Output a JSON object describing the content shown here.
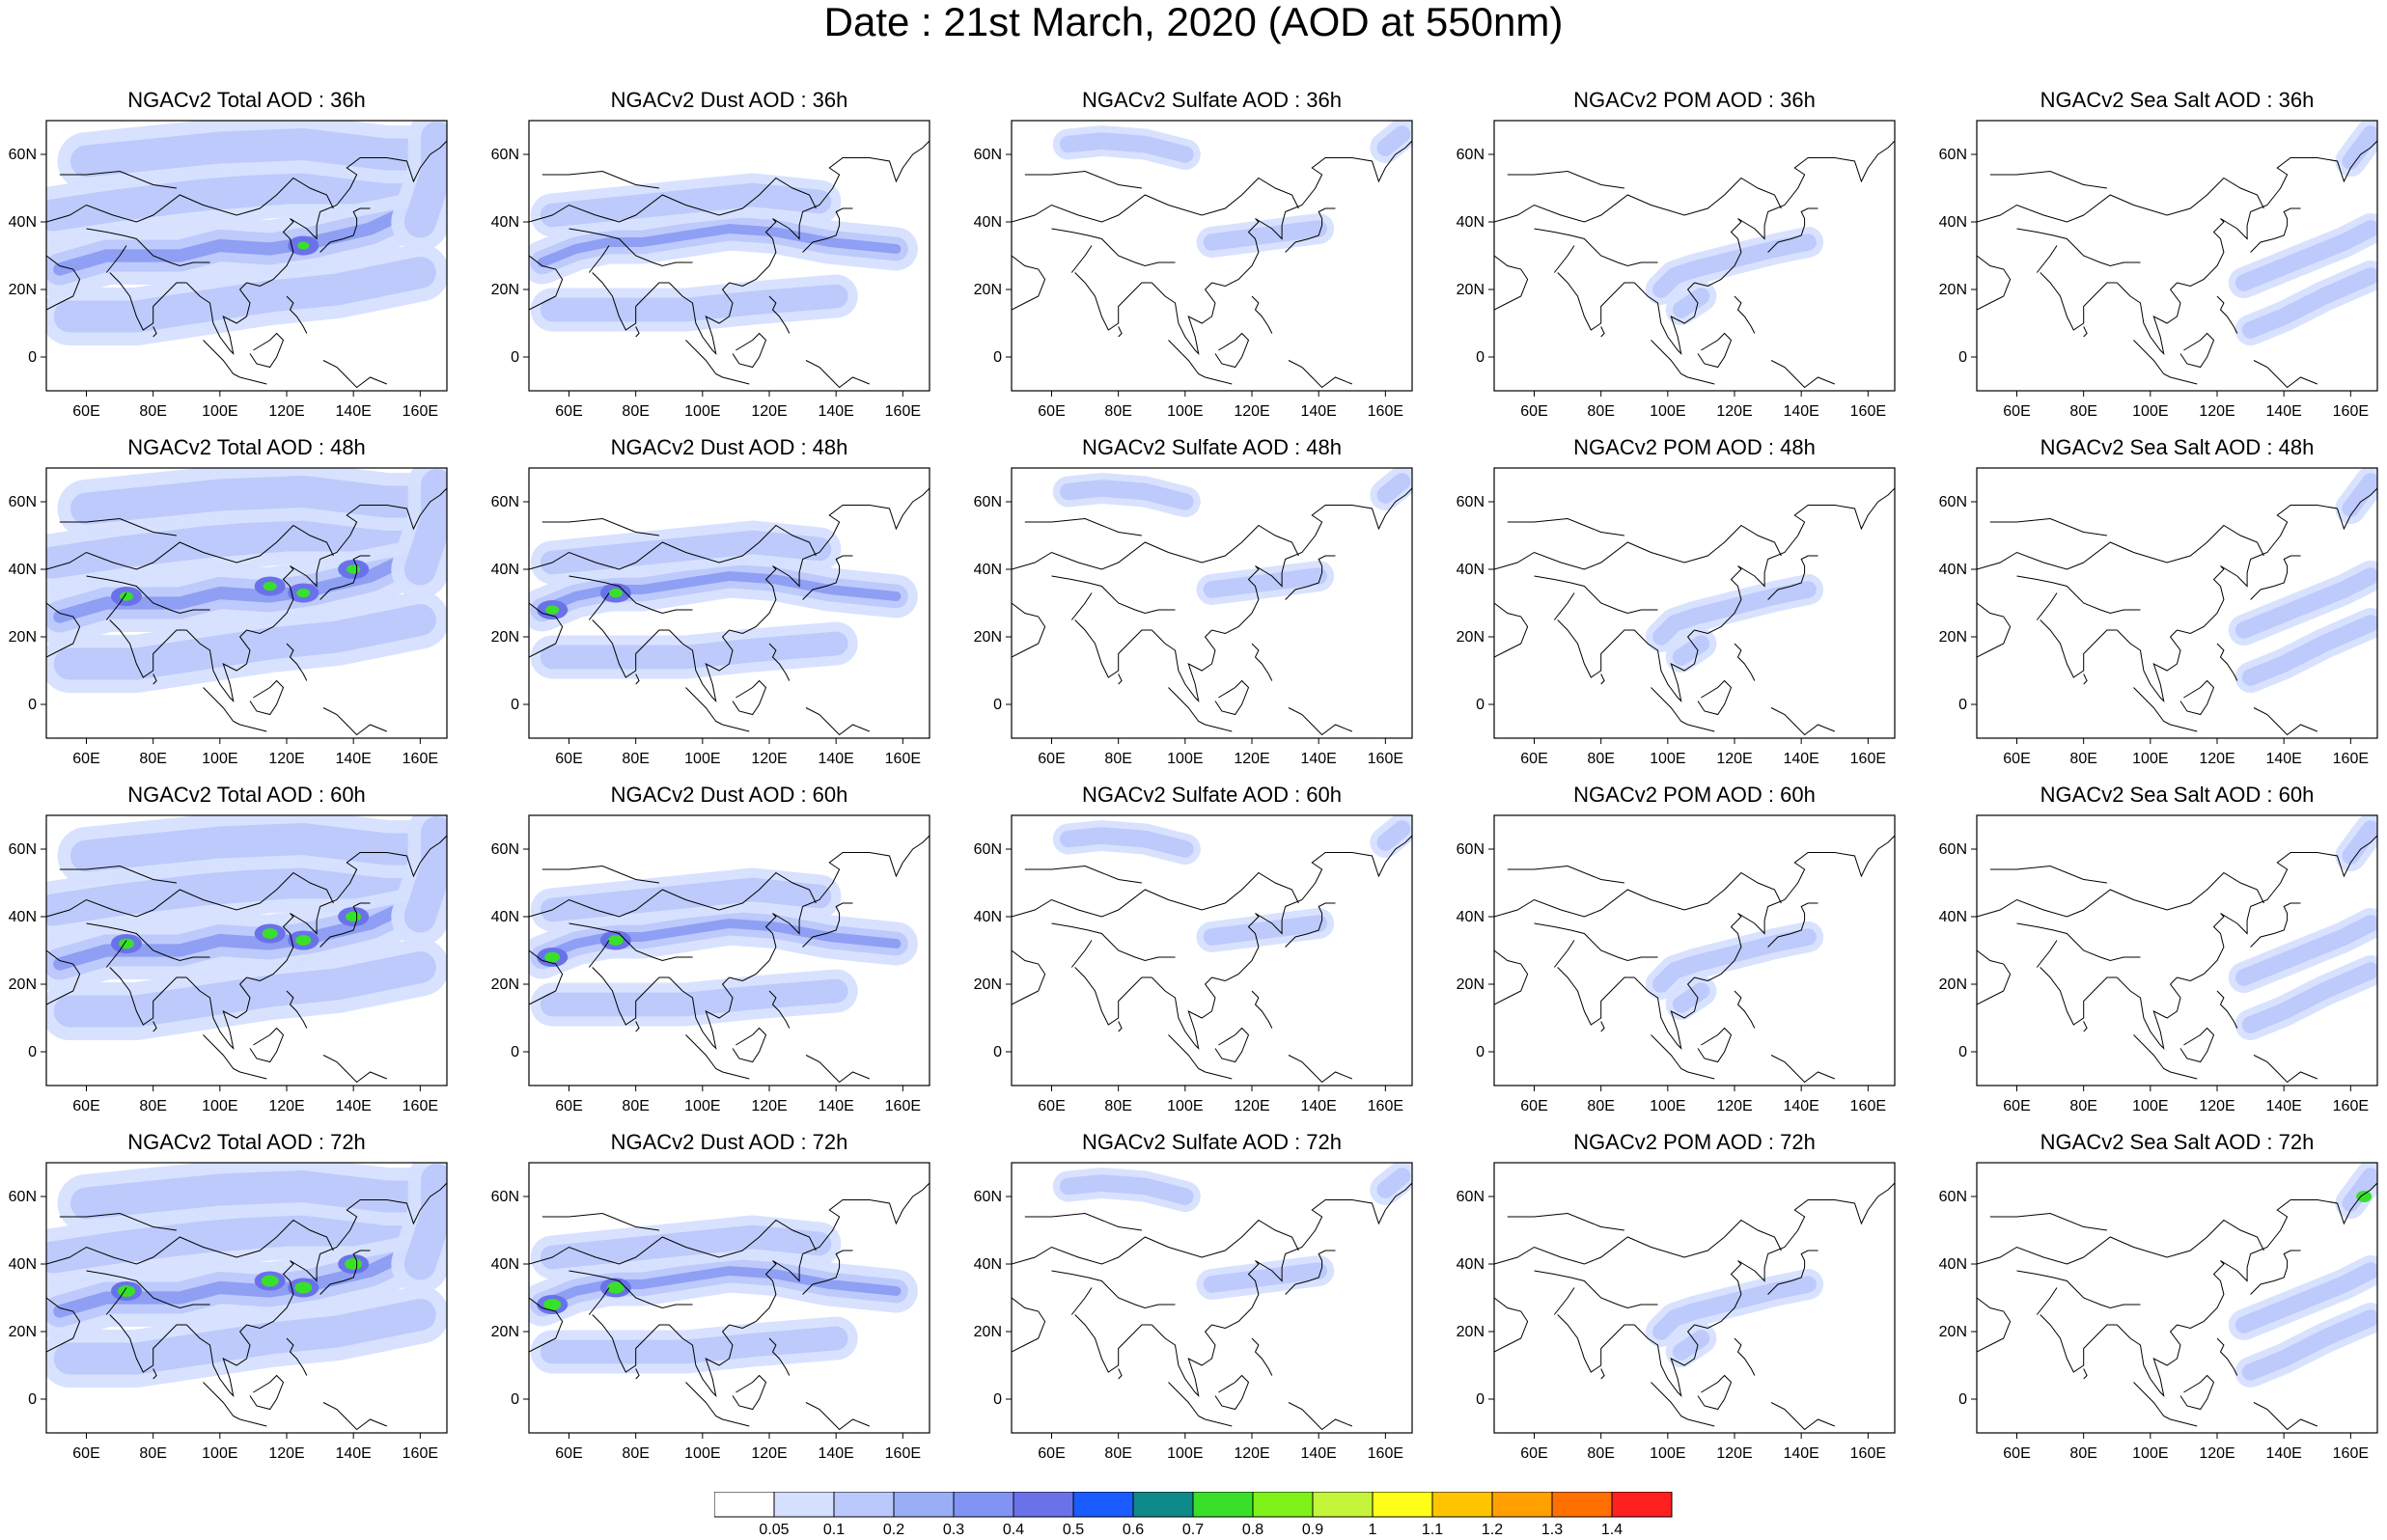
{
  "title": "Date : 21st March, 2020 (AOD at 550nm)",
  "panels": [
    {
      "title": "NGACv2 Total AOD : 36h",
      "species": "total",
      "hour": 36
    },
    {
      "title": "NGACv2 Dust AOD : 36h",
      "species": "dust",
      "hour": 36
    },
    {
      "title": "NGACv2 Sulfate AOD : 36h",
      "species": "sulfate",
      "hour": 36
    },
    {
      "title": "NGACv2 POM AOD : 36h",
      "species": "pom",
      "hour": 36
    },
    {
      "title": "NGACv2 Sea Salt AOD : 36h",
      "species": "seasalt",
      "hour": 36
    },
    {
      "title": "NGACv2 Total AOD : 48h",
      "species": "total",
      "hour": 48
    },
    {
      "title": "NGACv2 Dust AOD : 48h",
      "species": "dust",
      "hour": 48
    },
    {
      "title": "NGACv2 Sulfate AOD : 48h",
      "species": "sulfate",
      "hour": 48
    },
    {
      "title": "NGACv2 POM AOD : 48h",
      "species": "pom",
      "hour": 48
    },
    {
      "title": "NGACv2 Sea Salt AOD : 48h",
      "species": "seasalt",
      "hour": 48
    },
    {
      "title": "NGACv2 Total AOD : 60h",
      "species": "total",
      "hour": 60
    },
    {
      "title": "NGACv2 Dust AOD : 60h",
      "species": "dust",
      "hour": 60
    },
    {
      "title": "NGACv2 Sulfate AOD : 60h",
      "species": "sulfate",
      "hour": 60
    },
    {
      "title": "NGACv2 POM AOD : 60h",
      "species": "pom",
      "hour": 60
    },
    {
      "title": "NGACv2 Sea Salt AOD : 60h",
      "species": "seasalt",
      "hour": 60
    },
    {
      "title": "NGACv2 Total AOD : 72h",
      "species": "total",
      "hour": 72
    },
    {
      "title": "NGACv2 Dust AOD : 72h",
      "species": "dust",
      "hour": 72
    },
    {
      "title": "NGACv2 Sulfate AOD : 72h",
      "species": "sulfate",
      "hour": 72
    },
    {
      "title": "NGACv2 POM AOD : 72h",
      "species": "pom",
      "hour": 72
    },
    {
      "title": "NGACv2 Sea Salt  AOD : 72h",
      "species": "seasalt",
      "hour": 72
    }
  ],
  "map_axes": {
    "lon_ticks": [
      "60E",
      "80E",
      "100E",
      "120E",
      "140E",
      "160E"
    ],
    "lon_values": [
      60,
      80,
      100,
      120,
      140,
      160
    ],
    "lat_ticks": [
      "60N",
      "40N",
      "20N",
      "0"
    ],
    "lat_values": [
      60,
      40,
      20,
      0
    ],
    "lon_range": [
      48,
      168
    ],
    "lat_range": [
      -10,
      70
    ]
  },
  "colorbar": {
    "labels": [
      "0.05",
      "0.1",
      "0.2",
      "0.3",
      "0.4",
      "0.5",
      "0.6",
      "0.7",
      "0.8",
      "0.9",
      "1",
      "1.1",
      "1.2",
      "1.3",
      "1.4"
    ],
    "colors": [
      "#ffffff",
      "#d6e0ff",
      "#bac8fb",
      "#9aaef6",
      "#8294f3",
      "#6a72ea",
      "#1a5cff",
      "#0f8a8a",
      "#38e02a",
      "#7ff21a",
      "#c4f53a",
      "#ffff1a",
      "#ffc400",
      "#ffa000",
      "#ff7000",
      "#ff2020"
    ]
  },
  "plumes": {
    "total": [
      [
        [
          52,
          26
        ],
        [
          66,
          30
        ],
        [
          78,
          30
        ],
        [
          88,
          30
        ],
        [
          100,
          33
        ],
        [
          115,
          32
        ],
        [
          128,
          34
        ],
        [
          145,
          38
        ],
        [
          160,
          45
        ]
      ],
      [
        [
          50,
          42
        ],
        [
          70,
          45
        ],
        [
          95,
          48
        ],
        [
          120,
          50
        ],
        [
          140,
          50
        ],
        [
          165,
          55
        ]
      ],
      [
        [
          60,
          58
        ],
        [
          80,
          60
        ],
        [
          100,
          62
        ],
        [
          125,
          63
        ],
        [
          150,
          60
        ],
        [
          165,
          60
        ]
      ],
      [
        [
          55,
          12
        ],
        [
          75,
          12
        ],
        [
          95,
          15
        ],
        [
          115,
          18
        ],
        [
          135,
          20
        ],
        [
          160,
          25
        ]
      ],
      [
        [
          160,
          40
        ],
        [
          165,
          55
        ],
        [
          165,
          65
        ]
      ]
    ],
    "dust": [
      [
        [
          52,
          28
        ],
        [
          62,
          32
        ],
        [
          72,
          34
        ],
        [
          82,
          34
        ],
        [
          95,
          36
        ],
        [
          108,
          38
        ],
        [
          122,
          37
        ],
        [
          138,
          34
        ],
        [
          158,
          32
        ]
      ],
      [
        [
          55,
          42
        ],
        [
          75,
          44
        ],
        [
          95,
          46
        ],
        [
          115,
          48
        ],
        [
          135,
          46
        ]
      ],
      [
        [
          55,
          14
        ],
        [
          75,
          14
        ],
        [
          95,
          14
        ],
        [
          115,
          16
        ],
        [
          140,
          18
        ]
      ]
    ],
    "sulfate": [
      [
        [
          108,
          34
        ],
        [
          116,
          35
        ],
        [
          124,
          36
        ],
        [
          132,
          37
        ],
        [
          140,
          38
        ]
      ],
      [
        [
          65,
          63
        ],
        [
          75,
          64
        ],
        [
          88,
          63
        ],
        [
          100,
          60
        ]
      ],
      [
        [
          160,
          62
        ],
        [
          165,
          66
        ]
      ]
    ],
    "pom": [
      [
        [
          98,
          20
        ],
        [
          102,
          24
        ],
        [
          108,
          26
        ],
        [
          116,
          28
        ],
        [
          124,
          30
        ],
        [
          132,
          32
        ],
        [
          142,
          34
        ]
      ],
      [
        [
          104,
          14
        ],
        [
          110,
          18
        ]
      ]
    ],
    "seasalt": [
      [
        [
          128,
          22
        ],
        [
          138,
          26
        ],
        [
          148,
          30
        ],
        [
          158,
          34
        ],
        [
          166,
          38
        ]
      ],
      [
        [
          130,
          8
        ],
        [
          140,
          12
        ],
        [
          152,
          18
        ],
        [
          166,
          24
        ]
      ],
      [
        [
          160,
          58
        ],
        [
          166,
          66
        ]
      ]
    ]
  }
}
